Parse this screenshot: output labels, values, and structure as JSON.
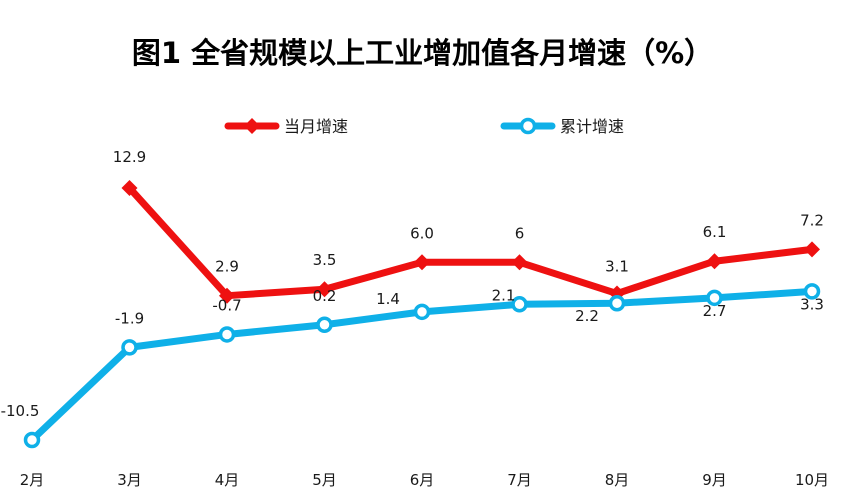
{
  "chart_data": {
    "type": "line",
    "title": "图1  全省规模以上工业增加值各月增速（%）",
    "categories": [
      "2月",
      "3月",
      "4月",
      "5月",
      "6月",
      "7月",
      "8月",
      "9月",
      "10月"
    ],
    "series": [
      {
        "name": "当月增速",
        "color": "#ee1111",
        "marker": "diamond",
        "values": [
          null,
          12.9,
          2.9,
          3.5,
          6.0,
          6.0,
          3.1,
          6.1,
          7.2
        ],
        "labels": [
          "",
          "12.9",
          "2.9",
          "3.5",
          "6.0",
          "6",
          "3.1",
          "6.1",
          "7.2"
        ]
      },
      {
        "name": "累计增速",
        "color": "#0fb0e8",
        "marker": "circle",
        "values": [
          -10.5,
          -1.9,
          -0.7,
          0.2,
          1.4,
          2.1,
          2.2,
          2.7,
          3.3
        ],
        "labels": [
          "-10.5",
          "-1.9",
          "-0.7",
          "0.2",
          "1.4",
          "2.1",
          "2.2",
          "2.7",
          "3.3"
        ]
      }
    ],
    "ylim": [
      -10.5,
      12.9
    ],
    "grid": false,
    "legend": "top"
  }
}
